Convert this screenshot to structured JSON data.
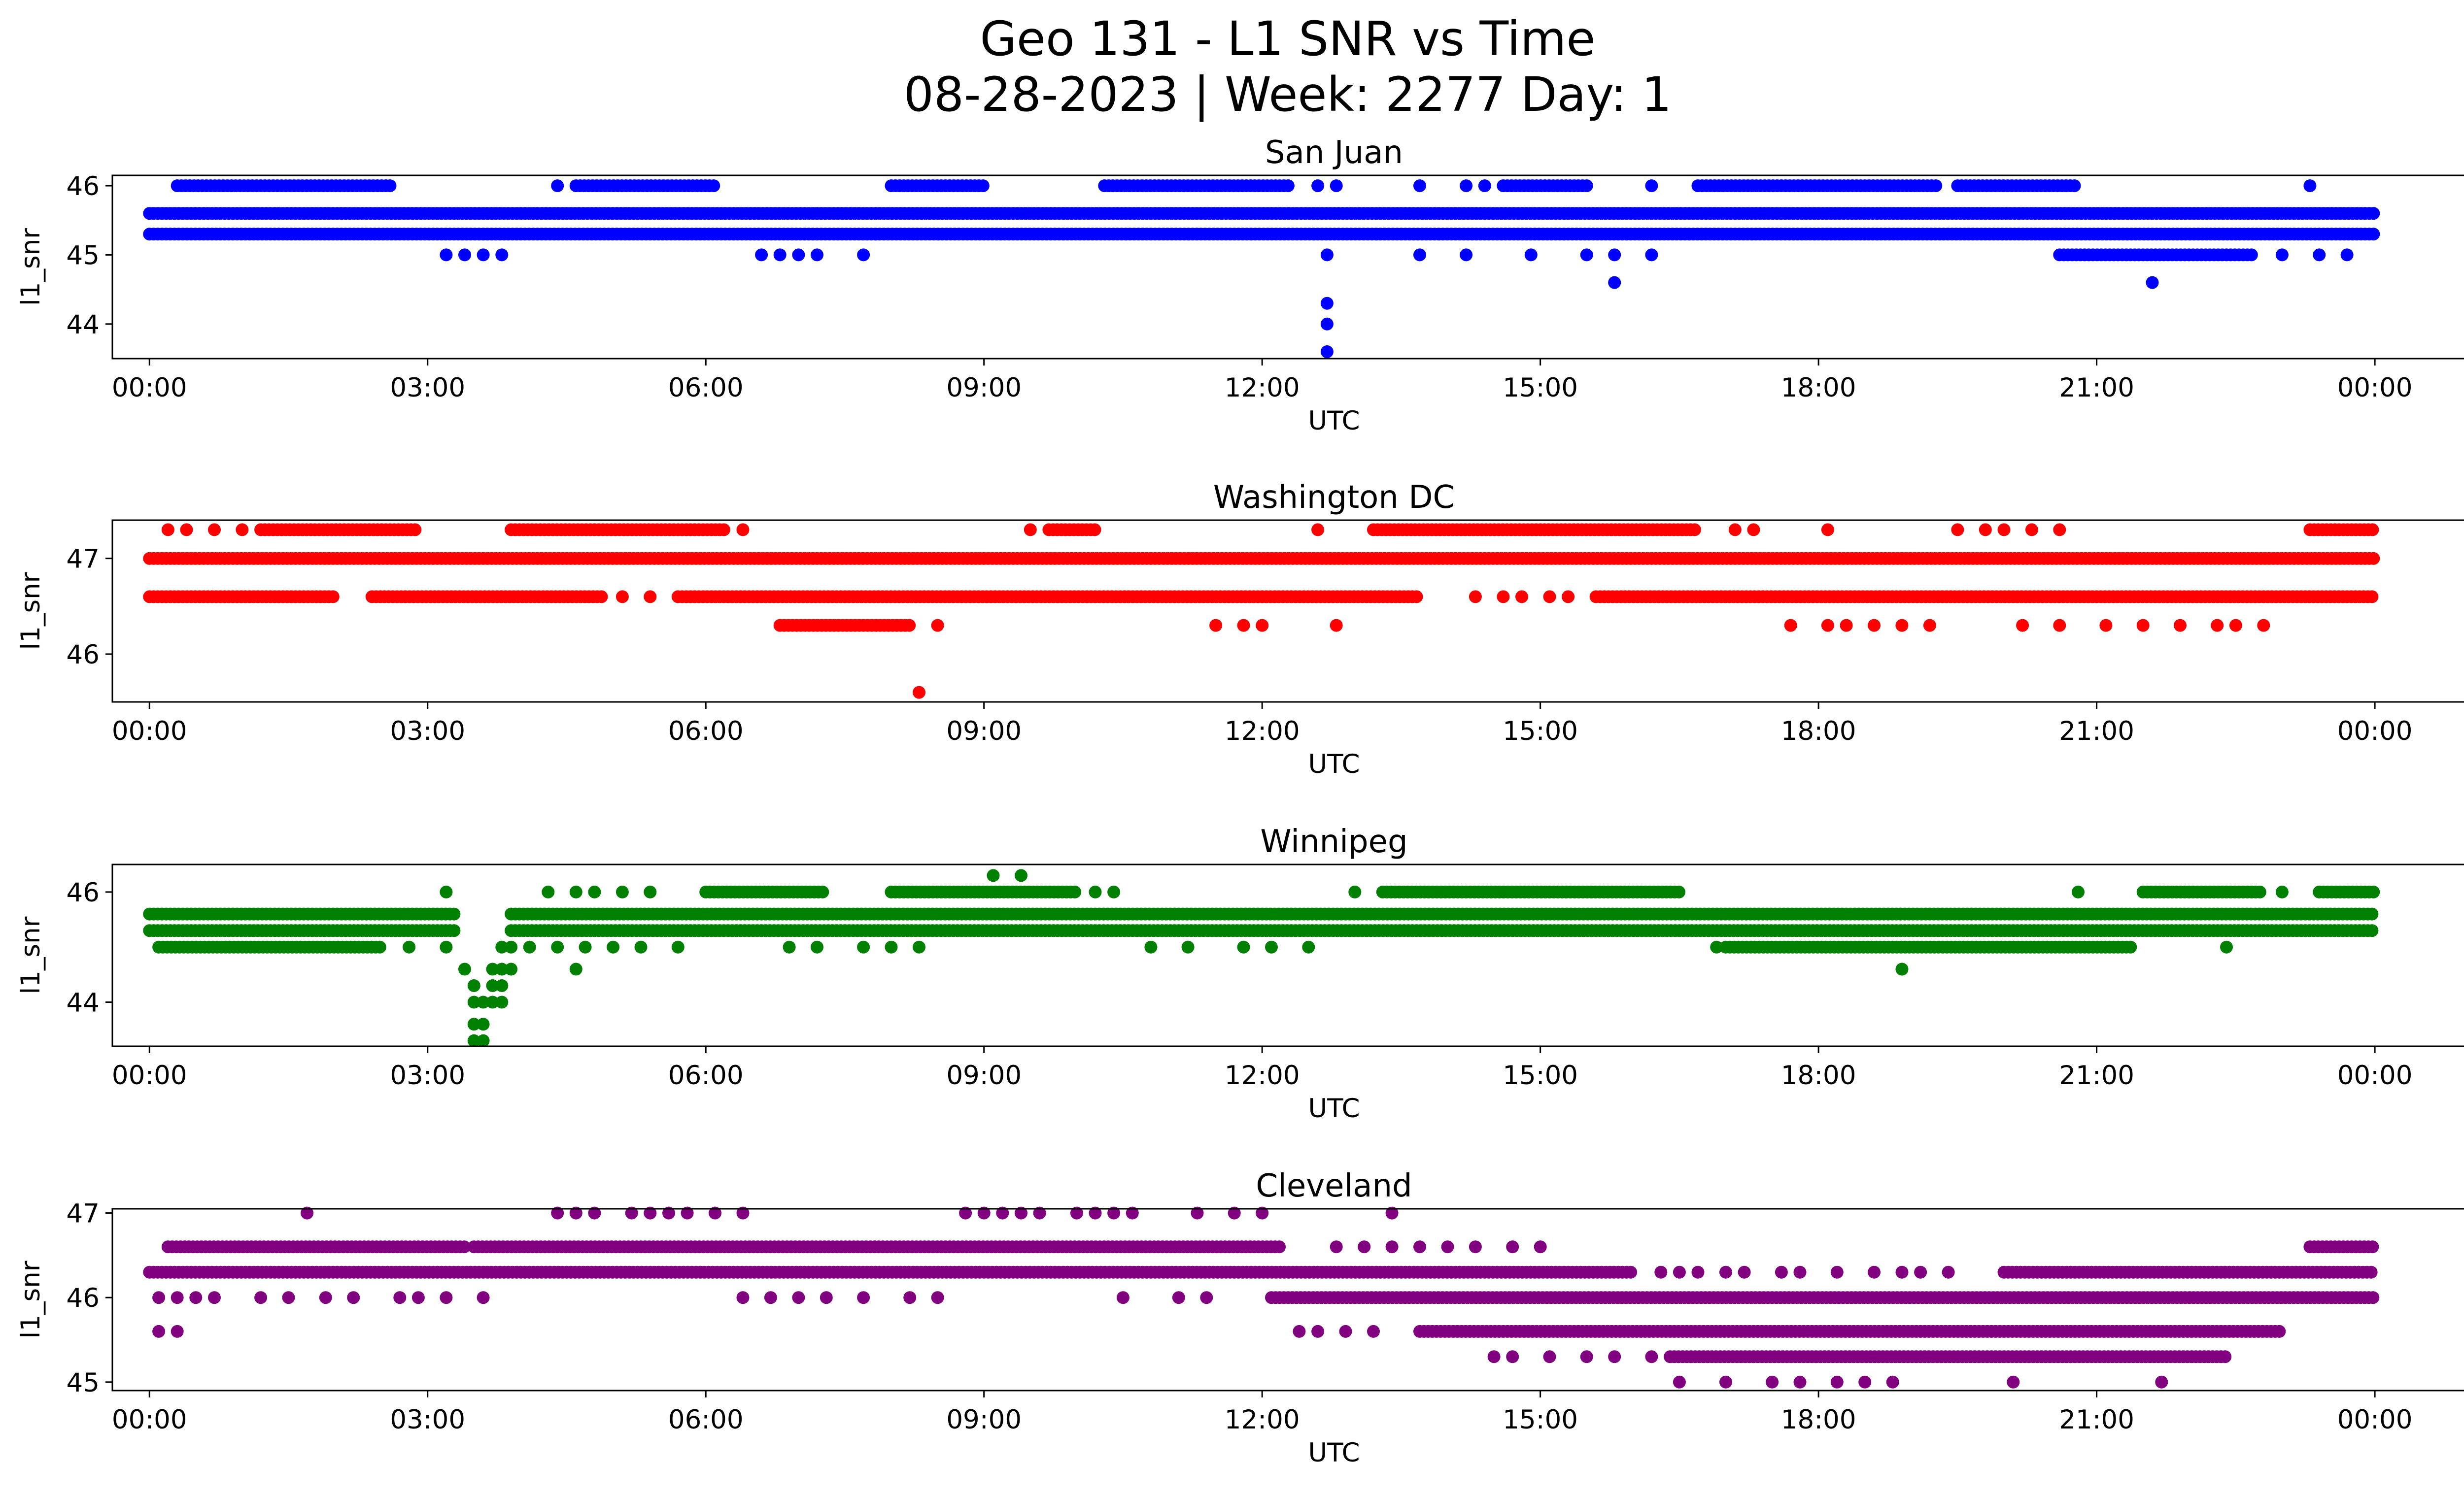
{
  "figure": {
    "title_line1": "Geo 131 - L1 SNR vs Time",
    "title_line2": "08-28-2023 | Week: 2277 Day: 1"
  },
  "chart_data": [
    {
      "type": "scatter",
      "title": "San Juan",
      "xlabel": "UTC",
      "ylabel": "l1_snr",
      "color": "#0000ff",
      "xlim_hours": [
        -0.4,
        25.95
      ],
      "ylim": [
        43.5,
        46.15
      ],
      "yticks": [
        44,
        45,
        46
      ],
      "xtick_labels": [
        "00:00",
        "03:00",
        "06:00",
        "09:00",
        "12:00",
        "15:00",
        "18:00",
        "21:00",
        "00:00"
      ],
      "levels": [
        {
          "y": 45.6,
          "segments": [
            [
              0,
              24
            ]
          ]
        },
        {
          "y": 45.3,
          "segments": [
            [
              0,
              24
            ]
          ]
        },
        {
          "y": 46.0,
          "segments": [
            [
              0.3,
              2.6
            ],
            [
              4.6,
              6.1
            ],
            [
              8.0,
              9.0
            ],
            [
              10.3,
              12.3
            ],
            [
              14.6,
              15.5
            ],
            [
              16.7,
              19.3
            ],
            [
              19.5,
              20.8
            ]
          ],
          "points": [
            4.4,
            12.6,
            12.8,
            13.7,
            14.2,
            14.4,
            16.2,
            23.3
          ]
        },
        {
          "y": 45.0,
          "segments": [
            [
              20.6,
              22.7
            ]
          ],
          "points": [
            3.2,
            3.4,
            3.6,
            3.8,
            6.6,
            6.8,
            7.0,
            7.2,
            7.7,
            12.7,
            13.7,
            14.2,
            14.9,
            15.5,
            15.8,
            16.2,
            23.0,
            23.4,
            23.7
          ]
        },
        {
          "y": 44.6,
          "points": [
            15.8,
            21.6
          ]
        },
        {
          "y": 44.3,
          "points": [
            12.7
          ]
        },
        {
          "y": 44.0,
          "points": [
            12.7
          ]
        },
        {
          "y": 43.6,
          "points": [
            12.7
          ]
        }
      ]
    },
    {
      "type": "scatter",
      "title": "Washington DC",
      "xlabel": "UTC",
      "ylabel": "l1_snr",
      "color": "#ff0000",
      "xlim_hours": [
        -0.4,
        25.95
      ],
      "ylim": [
        45.5,
        47.4
      ],
      "yticks": [
        46,
        47
      ],
      "xtick_labels": [
        "00:00",
        "03:00",
        "06:00",
        "09:00",
        "12:00",
        "15:00",
        "18:00",
        "21:00",
        "00:00"
      ],
      "levels": [
        {
          "y": 47.0,
          "segments": [
            [
              0,
              24
            ]
          ]
        },
        {
          "y": 46.6,
          "segments": [
            [
              0,
              2.0
            ],
            [
              2.4,
              4.9
            ],
            [
              5.7,
              13.7
            ],
            [
              15.6,
              24
            ]
          ],
          "points": [
            5.1,
            5.4,
            14.3,
            14.6,
            14.8,
            15.1,
            15.3
          ]
        },
        {
          "y": 47.3,
          "segments": [
            [
              1.2,
              2.9
            ],
            [
              3.9,
              6.2
            ],
            [
              9.7,
              10.2
            ],
            [
              13.2,
              16.7
            ],
            [
              23.3,
              24
            ]
          ],
          "points": [
            0.2,
            0.4,
            0.7,
            1.0,
            6.4,
            9.5,
            12.6,
            17.1,
            17.3,
            18.1,
            19.5,
            19.8,
            20.0,
            20.3,
            20.6
          ]
        },
        {
          "y": 46.3,
          "segments": [
            [
              6.8,
              8.2
            ]
          ],
          "points": [
            8.5,
            11.5,
            11.8,
            12.0,
            12.8,
            17.7,
            18.1,
            18.3,
            18.6,
            18.9,
            19.2,
            20.2,
            20.6,
            21.1,
            21.5,
            21.9,
            22.3,
            22.5,
            22.8
          ]
        },
        {
          "y": 45.6,
          "points": [
            8.3
          ]
        }
      ]
    },
    {
      "type": "scatter",
      "title": "Winnipeg",
      "xlabel": "UTC",
      "ylabel": "l1_snr",
      "color": "#008000",
      "xlim_hours": [
        -0.4,
        25.95
      ],
      "ylim": [
        43.2,
        46.5
      ],
      "yticks": [
        44,
        46
      ],
      "xtick_labels": [
        "00:00",
        "03:00",
        "06:00",
        "09:00",
        "12:00",
        "15:00",
        "18:00",
        "21:00",
        "00:00"
      ],
      "levels": [
        {
          "y": 45.6,
          "segments": [
            [
              0,
              3.3
            ],
            [
              3.9,
              24
            ]
          ]
        },
        {
          "y": 45.3,
          "segments": [
            [
              0,
              3.3
            ],
            [
              3.9,
              24
            ]
          ]
        },
        {
          "y": 45.0,
          "segments": [
            [
              0.1,
              2.5
            ],
            [
              17.0,
              21.4
            ]
          ],
          "points": [
            2.8,
            3.2,
            4.1,
            4.4,
            4.7,
            5.0,
            5.3,
            5.7,
            6.9,
            7.2,
            7.7,
            8.0,
            8.3,
            10.8,
            11.2,
            11.8,
            12.1,
            12.5,
            16.9,
            22.4
          ]
        },
        {
          "y": 46.0,
          "segments": [
            [
              6.0,
              7.3
            ],
            [
              8.0,
              10.0
            ],
            [
              13.3,
              16.5
            ],
            [
              21.5,
              22.8
            ],
            [
              23.4,
              24
            ]
          ],
          "points": [
            3.2,
            4.3,
            4.6,
            4.8,
            5.1,
            5.4,
            10.2,
            10.4,
            13.0,
            20.8,
            23.0
          ]
        },
        {
          "y": 46.3,
          "points": [
            9.1,
            9.4
          ]
        },
        {
          "y": 44.6,
          "points": [
            3.4,
            4.6,
            18.9
          ]
        },
        {
          "y": 44.3,
          "points": [
            3.5,
            3.7,
            3.8
          ]
        },
        {
          "y": 44.0,
          "points": [
            3.5,
            3.6,
            3.7,
            3.8
          ]
        },
        {
          "y": 43.6,
          "points": [
            3.5,
            3.6
          ]
        },
        {
          "y": 43.3,
          "points": [
            3.5,
            3.6
          ]
        },
        {
          "y": 44.6,
          "points": [
            3.7,
            3.8,
            3.9
          ]
        },
        {
          "y": 45.0,
          "points": [
            3.8,
            3.9
          ]
        }
      ]
    },
    {
      "type": "scatter",
      "title": "Cleveland",
      "xlabel": "UTC",
      "ylabel": "l1_snr",
      "color": "#800080",
      "xlim_hours": [
        -0.4,
        25.95
      ],
      "ylim": [
        44.9,
        47.05
      ],
      "yticks": [
        45,
        46,
        47
      ],
      "xtick_labels": [
        "00:00",
        "03:00",
        "06:00",
        "09:00",
        "12:00",
        "15:00",
        "18:00",
        "21:00",
        "00:00"
      ],
      "levels": [
        {
          "y": 46.3,
          "segments": [
            [
              0,
              16.0
            ]
          ],
          "points": [
            16.3,
            16.5,
            16.7,
            17.0,
            17.2,
            17.6,
            17.8,
            18.2,
            18.6,
            18.9,
            19.1,
            19.4
          ],
          "segments2": [
            [
              20.0,
              24
            ]
          ]
        },
        {
          "y": 46.0,
          "segments": [
            [
              12.1,
              24
            ]
          ],
          "points": [
            0.1,
            0.3,
            0.5,
            0.7,
            1.2,
            1.5,
            1.9,
            2.2,
            2.7,
            2.9,
            3.2,
            3.6,
            6.4,
            6.7,
            7.0,
            7.3,
            7.7,
            8.2,
            8.5,
            10.5,
            11.1,
            11.4
          ]
        },
        {
          "y": 46.6,
          "segments": [
            [
              0.2,
              3.4
            ],
            [
              3.5,
              12.2
            ],
            [
              23.3,
              24
            ]
          ],
          "points": [
            12.8,
            13.1,
            13.4,
            13.7,
            14.0,
            14.3,
            14.7,
            15.0
          ]
        },
        {
          "y": 47.0,
          "points": [
            1.7,
            4.4,
            4.6,
            4.8,
            5.2,
            5.4,
            5.6,
            5.8,
            6.1,
            6.4,
            8.8,
            9.0,
            9.2,
            9.4,
            9.6,
            10.0,
            10.2,
            10.4,
            10.6,
            11.3,
            11.7,
            12.0,
            13.4
          ]
        },
        {
          "y": 45.6,
          "segments": [
            [
              13.7,
              23.0
            ]
          ],
          "points": [
            0.1,
            0.3,
            12.4,
            12.6,
            12.9,
            13.2
          ]
        },
        {
          "y": 45.3,
          "segments": [
            [
              16.4,
              22.4
            ]
          ],
          "points": [
            14.5,
            14.7,
            15.1,
            15.5,
            15.8,
            16.2
          ]
        },
        {
          "y": 45.0,
          "points": [
            16.5,
            17.0,
            17.5,
            17.8,
            18.2,
            18.5,
            18.8,
            20.1,
            21.7
          ]
        }
      ]
    }
  ]
}
